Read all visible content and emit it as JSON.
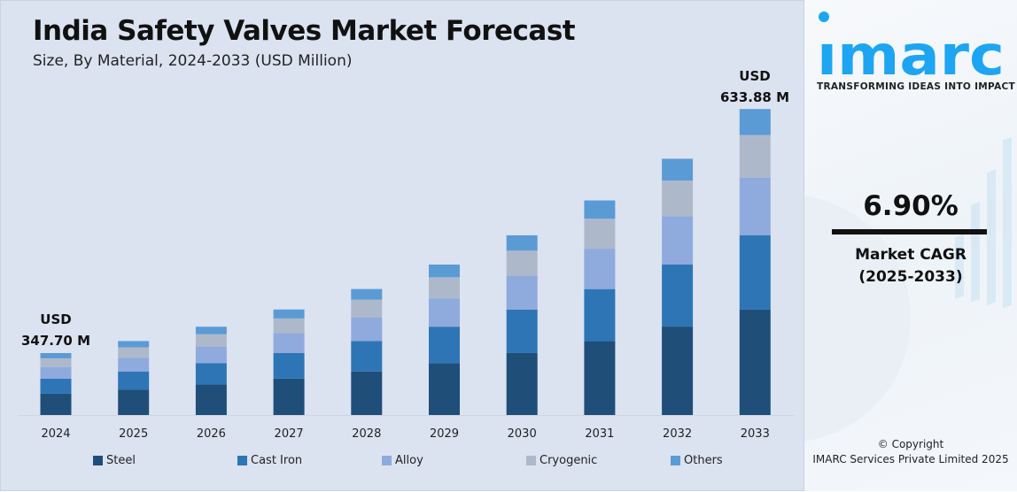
{
  "chart_data": {
    "type": "bar",
    "stacked": true,
    "title": "India Safety Valves Market Forecast",
    "subtitle": "Size, By Material, 2024-2033 (USD Million)",
    "categories": [
      "2024",
      "2025",
      "2026",
      "2027",
      "2028",
      "2029",
      "2030",
      "2031",
      "2032",
      "2033"
    ],
    "series": [
      {
        "name": "Steel",
        "color": "#1f4e79",
        "values": [
          120.0,
          128.2,
          137.1,
          146.6,
          156.7,
          167.5,
          179.0,
          191.4,
          204.6,
          218.7
        ]
      },
      {
        "name": "Cast Iron",
        "color": "#2e75b6",
        "values": [
          84.1,
          90.0,
          96.1,
          102.8,
          109.9,
          117.5,
          125.6,
          134.2,
          143.5,
          153.4
        ]
      },
      {
        "name": "Alloy",
        "color": "#8faadc",
        "values": [
          65.4,
          69.9,
          74.7,
          79.9,
          85.4,
          91.3,
          97.6,
          104.3,
          111.5,
          119.2
        ]
      },
      {
        "name": "Cryogenic",
        "color": "#adb9ca",
        "values": [
          48.7,
          52.0,
          55.6,
          59.5,
          63.6,
          68.0,
          72.6,
          77.7,
          83.0,
          88.7
        ]
      },
      {
        "name": "Others",
        "color": "#5b9bd5",
        "values": [
          29.5,
          31.6,
          33.8,
          36.0,
          38.5,
          41.1,
          44.1,
          47.1,
          50.4,
          53.88
        ]
      }
    ],
    "annotations": [
      {
        "category": "2024",
        "line1": "USD",
        "line2": "347.70 M"
      },
      {
        "category": "2033",
        "line1": "USD",
        "line2": "633.88 M"
      }
    ],
    "legend_position": "bottom",
    "grid": false,
    "y_axis_visible": false
  },
  "side": {
    "logo_text": "imarc",
    "tagline": "TRANSFORMING IDEAS INTO IMPACT",
    "cagr_value": "6.90%",
    "cagr_label": "Market CAGR",
    "cagr_period": "(2025-2033)",
    "copyright_line1": "© Copyright",
    "copyright_line2": "IMARC Services Private Limited 2025",
    "brand_color": "#1ea5f2"
  }
}
